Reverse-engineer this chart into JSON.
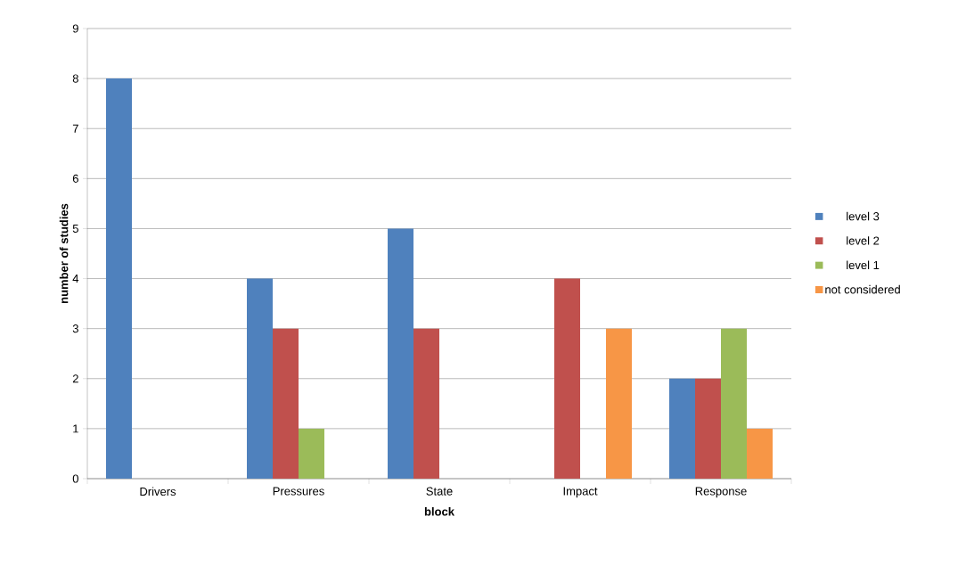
{
  "chart_data": {
    "type": "bar",
    "xlabel": "block",
    "ylabel": "number of studies",
    "categories": [
      "Drivers",
      "Pressures",
      "State",
      "Impact",
      "Response"
    ],
    "series": [
      {
        "name": "level 3",
        "color": "#4f81bd",
        "values": [
          8,
          4,
          5,
          0,
          2
        ]
      },
      {
        "name": "level 2",
        "color": "#c0504d",
        "values": [
          0,
          3,
          3,
          4,
          2
        ]
      },
      {
        "name": "level 1",
        "color": "#9bbb59",
        "values": [
          0,
          1,
          0,
          0,
          3
        ]
      },
      {
        "name": "not considered",
        "color": "#f79646",
        "values": [
          0,
          0,
          0,
          3,
          1
        ]
      }
    ],
    "ylim": [
      0,
      9
    ],
    "yticks": [
      0,
      1,
      2,
      3,
      4,
      5,
      6,
      7,
      8,
      9
    ],
    "grid": "y",
    "legend": "right"
  }
}
